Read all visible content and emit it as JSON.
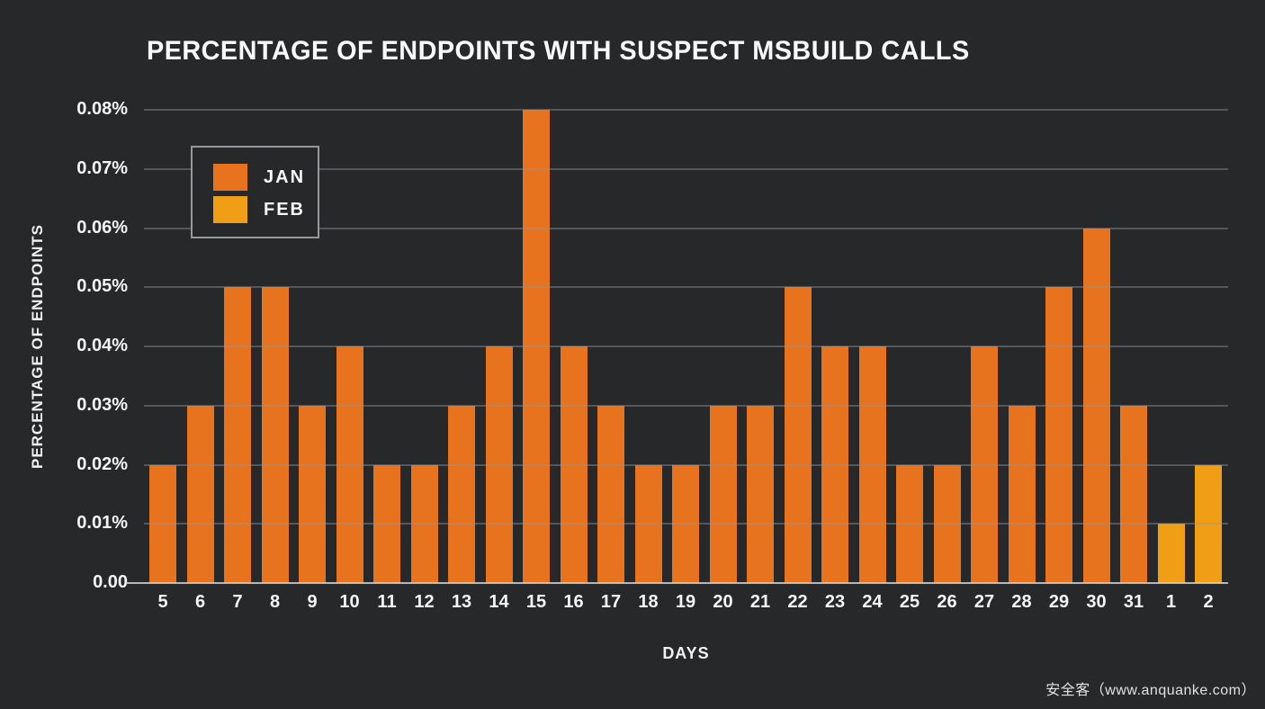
{
  "title": "PERCENTAGE OF ENDPOINTS WITH SUSPECT MSBUILD CALLS",
  "y_axis": {
    "label": "PERCENTAGE OF ENDPOINTS",
    "ticks": [
      "0.08%",
      "0.07%",
      "0.06%",
      "0.05%",
      "0.04%",
      "0.03%",
      "0.02%",
      "0.01%",
      "0.00"
    ]
  },
  "x_axis": {
    "label": "DAYS"
  },
  "legend": {
    "items": [
      {
        "label": "JAN",
        "color": "#E8731F"
      },
      {
        "label": "FEB",
        "color": "#F09E16"
      }
    ]
  },
  "watermark": "安全客（www.anquanke.com）",
  "colors": {
    "background": "#26282A",
    "jan_bar": "#E8731F",
    "feb_bar": "#F09E16",
    "gridline": "#54585B",
    "axis_line": "#9BA0A3",
    "text": "#FFFFFF"
  },
  "chart_data": {
    "type": "bar",
    "title": "PERCENTAGE OF ENDPOINTS WITH SUSPECT MSBUILD CALLS",
    "xlabel": "DAYS",
    "ylabel": "PERCENTAGE OF ENDPOINTS",
    "ylim": [
      0,
      0.08
    ],
    "y_tick_step": 0.01,
    "y_unit": "%",
    "grid": true,
    "legend_position": "upper-left",
    "categories": [
      "5",
      "6",
      "7",
      "8",
      "9",
      "10",
      "11",
      "12",
      "13",
      "14",
      "15",
      "16",
      "17",
      "18",
      "19",
      "20",
      "21",
      "22",
      "23",
      "24",
      "25",
      "26",
      "27",
      "28",
      "29",
      "30",
      "31",
      "1",
      "2"
    ],
    "values": [
      0.02,
      0.03,
      0.05,
      0.05,
      0.03,
      0.04,
      0.02,
      0.02,
      0.03,
      0.04,
      0.08,
      0.04,
      0.03,
      0.02,
      0.02,
      0.03,
      0.03,
      0.05,
      0.04,
      0.04,
      0.02,
      0.02,
      0.04,
      0.03,
      0.05,
      0.06,
      0.03,
      0.01,
      0.02
    ],
    "point_series": [
      "JAN",
      "JAN",
      "JAN",
      "JAN",
      "JAN",
      "JAN",
      "JAN",
      "JAN",
      "JAN",
      "JAN",
      "JAN",
      "JAN",
      "JAN",
      "JAN",
      "JAN",
      "JAN",
      "JAN",
      "JAN",
      "JAN",
      "JAN",
      "JAN",
      "JAN",
      "JAN",
      "JAN",
      "JAN",
      "JAN",
      "JAN",
      "FEB",
      "FEB"
    ],
    "series": [
      {
        "name": "JAN",
        "color": "#E8731F"
      },
      {
        "name": "FEB",
        "color": "#F09E16"
      }
    ]
  }
}
